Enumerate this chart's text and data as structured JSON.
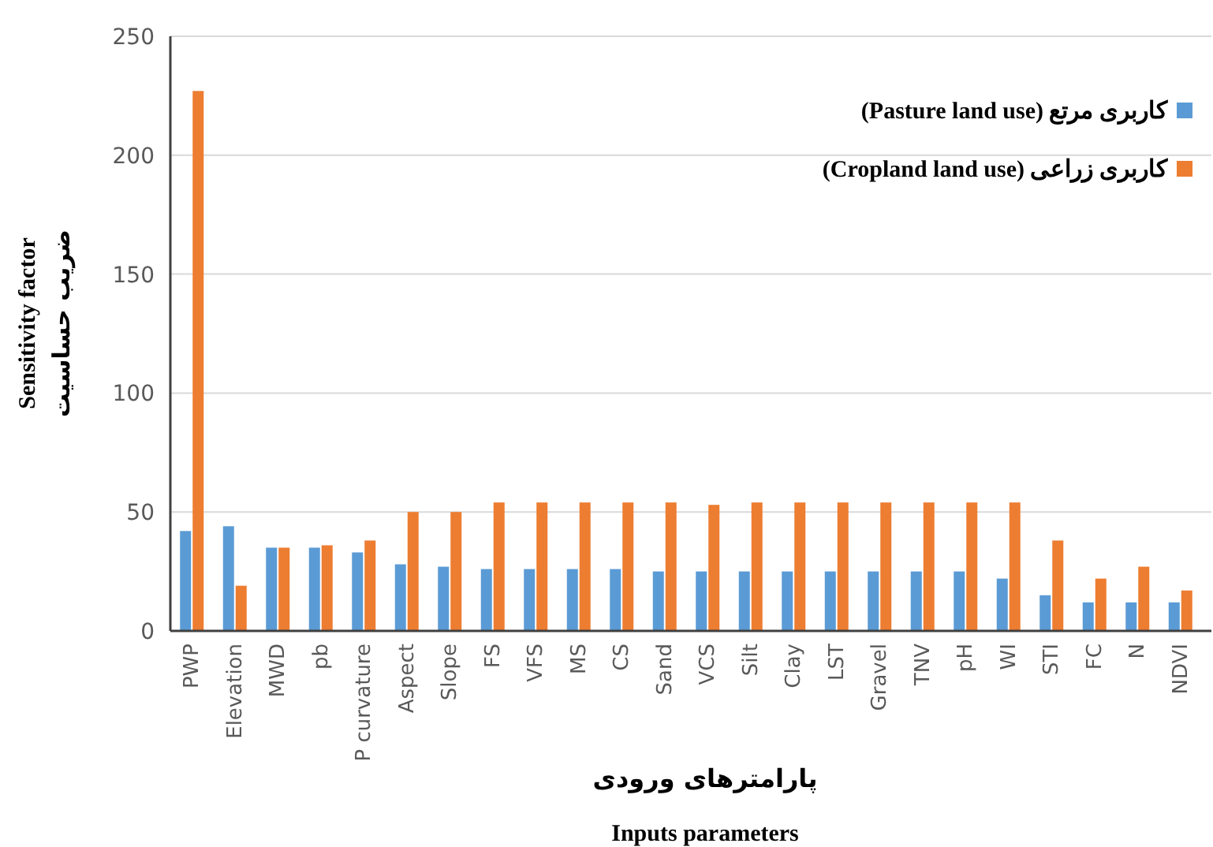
{
  "chart_data": {
    "type": "bar",
    "xlabel": "پارامترهای ورودی",
    "ylabel": "Sensitivity factor",
    "annotations": [
      "ضریب حساسیت",
      "Inputs parameters"
    ],
    "categories": [
      "PWP",
      "Elevation",
      "MWD",
      "pb",
      "P curvature",
      "Aspect",
      "Slope",
      "FS",
      "VFS",
      "MS",
      "CS",
      "Sand",
      "VCS",
      "Silt",
      "Clay",
      "LST",
      "Gravel",
      "TNV",
      "pH",
      "WI",
      "STI",
      "FC",
      "N",
      "NDVI"
    ],
    "series": [
      {
        "name": "کاربری مرتع (Pasture land use)",
        "color": "#5b9bd5",
        "values": [
          42,
          44,
          35,
          35,
          33,
          28,
          27,
          26,
          26,
          26,
          26,
          25,
          25,
          25,
          25,
          25,
          25,
          25,
          25,
          22,
          15,
          12,
          12,
          12
        ]
      },
      {
        "name": "کاربری زراعی (Cropland land use)",
        "color": "#ed7d31",
        "values": [
          227,
          19,
          35,
          36,
          38,
          50,
          50,
          54,
          54,
          54,
          54,
          54,
          53,
          54,
          54,
          54,
          54,
          54,
          54,
          54,
          38,
          22,
          27,
          17
        ]
      }
    ],
    "ylim": [
      0,
      250
    ],
    "yticks": [
      0,
      50,
      100,
      150,
      200,
      250
    ],
    "grid": "y",
    "legend": "top right"
  }
}
